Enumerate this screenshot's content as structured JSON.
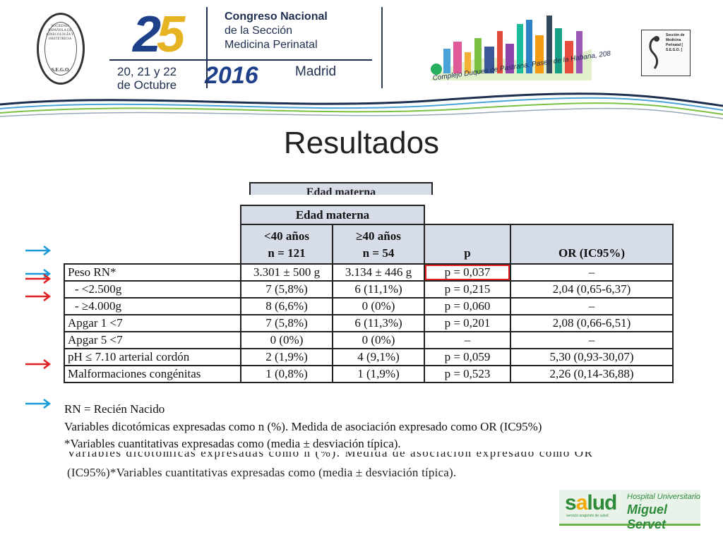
{
  "header": {
    "seal_text": "SOCIEDAD ESPAÑOLA DE GINECOLOGÍA Y OBSTETRICIA",
    "seal_abbr": "S.E.G.O.",
    "edition_number": "25",
    "dates_line1": "20, 21 y 22",
    "dates_line2": "de Octubre",
    "year": "2016",
    "congress_line1": "Congreso Nacional",
    "congress_line2": "de la Sección",
    "congress_line3": "Medicina Perinatal",
    "city": "Madrid",
    "venue": "Complejo Duques de Pastrana. Paseo de la Habana, 208",
    "right_logo_text": "Sección de Medicina Perinatal [ S.E.G.O. ]"
  },
  "title": "Resultados",
  "remnant_header": "Edad materna",
  "table": {
    "group_header": "Edad materna",
    "col1": "<40 años",
    "col1_n": "n = 121",
    "col2": "≥40 años",
    "col2_n": "n = 54",
    "col_p": "p",
    "col_or": "OR (IC95%)",
    "rows": [
      {
        "label": "Peso RN*",
        "c1": "3.301 ± 500 g",
        "c2": "3.134 ± 446 g",
        "p": "p = 0,037",
        "or": "–"
      },
      {
        "label": "- <2.500g",
        "c1": "7 (5,8%)",
        "c2": "6 (11,1%)",
        "p": "p = 0,215",
        "or": "2,04 (0,65-6,37)"
      },
      {
        "label": "- ≥4.000g",
        "c1": "8 (6,6%)",
        "c2": "0 (0%)",
        "p": "p = 0,060",
        "or": "–"
      },
      {
        "label": "Apgar 1 <7",
        "c1": "7 (5,8%)",
        "c2": "6 (11,3%)",
        "p": "p = 0,201",
        "or": "2,08 (0,66-6,51)"
      },
      {
        "label": "Apgar 5 <7",
        "c1": "0 (0%)",
        "c2": "0 (0%)",
        "p": "–",
        "or": "–"
      },
      {
        "label": "pH ≤ 7.10 arterial cordón",
        "c1": "2 (1,9%)",
        "c2": "4 (9,1%)",
        "p": "p = 0,059",
        "or": "5,30 (0,93-30,07)"
      },
      {
        "label": "Malformaciones congénitas",
        "c1": "1 (0,8%)",
        "c2": "1 (1,9%)",
        "p": "p = 0,523",
        "or": "2,26 (0,14-36,88)"
      }
    ]
  },
  "footnotes": {
    "line1": "RN = Recién Nacido",
    "line2": "Variables dicotómicas expresadas como n (%). Medida de asociación expresado como OR (IC95%)",
    "line3": "*Variables cuantitativas expresadas como (media ± desviación típica).",
    "remnant_line1": "Variables dicotómicas expresadas como n (%). Medida de asociación expresado como OR",
    "remnant_line2": "(IC95%)*Variables cuantitativas expresadas como (media ± desviación típica)."
  },
  "logo": {
    "salud_prefix": "s",
    "salud_u": "a",
    "salud_rest": "lud",
    "salud_sub": "servicio aragonés de salud",
    "hospital_line1": "Hospital Universitario",
    "hospital_line2": "Miguel Servet"
  },
  "colors": {
    "accent_blue": "#1e3f8a",
    "accent_gold": "#e6b422",
    "header_fill": "#d6dde8",
    "arrow_blue": "#1a9ad6",
    "arrow_red": "#e02020",
    "highlight_red": "#e02020",
    "salud_green": "#2e8b3a"
  },
  "arrows": [
    {
      "color": "blue",
      "icon": "arrow-right-icon"
    },
    {
      "color": "blue",
      "icon": "arrow-right-icon"
    },
    {
      "color": "red",
      "icon": "arrow-right-icon"
    },
    {
      "color": "red",
      "icon": "arrow-right-icon"
    },
    {
      "color": "red",
      "icon": "arrow-right-icon"
    },
    {
      "color": "blue",
      "icon": "arrow-right-icon"
    }
  ]
}
